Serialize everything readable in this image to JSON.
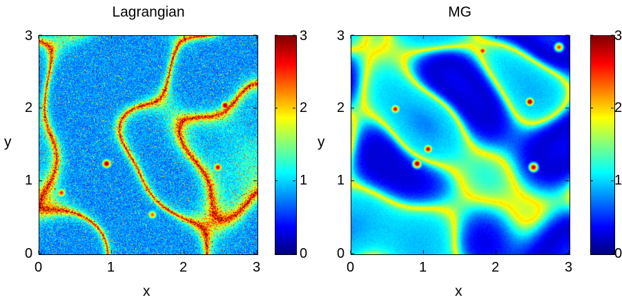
{
  "chart_data": [
    {
      "type": "heatmap",
      "title": "Lagrangian",
      "xlabel": "x",
      "ylabel": "y",
      "xlim": [
        0,
        3
      ],
      "ylim": [
        0,
        3
      ],
      "x_ticks": [
        "0",
        "1",
        "2",
        "3"
      ],
      "y_ticks": [
        "0",
        "1",
        "2",
        "3"
      ],
      "colormap": "jet",
      "colorbar": {
        "range": [
          0,
          3
        ],
        "ticks": [
          "0",
          "1",
          "2",
          "3"
        ]
      },
      "field_character": "noisy, speckled small-scale structure; mostly blue (0–1) with thin red filaments (~3)",
      "seed": 17,
      "hotspots": [
        {
          "x": 0.92,
          "y": 1.25,
          "value": 3
        },
        {
          "x": 2.55,
          "y": 2.05,
          "value": 3
        },
        {
          "x": 2.45,
          "y": 1.2,
          "value": 2.8
        },
        {
          "x": 0.3,
          "y": 0.85,
          "value": 2.6
        },
        {
          "x": 1.55,
          "y": 0.55,
          "value": 2.4
        }
      ]
    },
    {
      "type": "heatmap",
      "title": "MG",
      "xlabel": "x",
      "ylabel": "y",
      "xlim": [
        0,
        3
      ],
      "ylim": [
        0,
        3
      ],
      "x_ticks": [
        "0",
        "1",
        "2",
        "3"
      ],
      "y_ticks": [
        "0",
        "1",
        "2",
        "3"
      ],
      "colormap": "jet",
      "colorbar": {
        "range": [
          0,
          3
        ],
        "ticks": [
          "0",
          "1",
          "2",
          "3"
        ]
      },
      "field_character": "smooth blue background (0–1) with cyan filaments and scattered red/orange hotspots (2.5–3)",
      "seed": 41,
      "hotspots": [
        {
          "x": 2.45,
          "y": 2.1,
          "value": 3
        },
        {
          "x": 0.9,
          "y": 1.25,
          "value": 3
        },
        {
          "x": 2.5,
          "y": 1.2,
          "value": 2.9
        },
        {
          "x": 1.05,
          "y": 1.45,
          "value": 2.8
        },
        {
          "x": 0.6,
          "y": 2.0,
          "value": 2.7
        },
        {
          "x": 1.8,
          "y": 2.8,
          "value": 2.6
        },
        {
          "x": 2.85,
          "y": 2.85,
          "value": 2.5
        }
      ]
    }
  ]
}
